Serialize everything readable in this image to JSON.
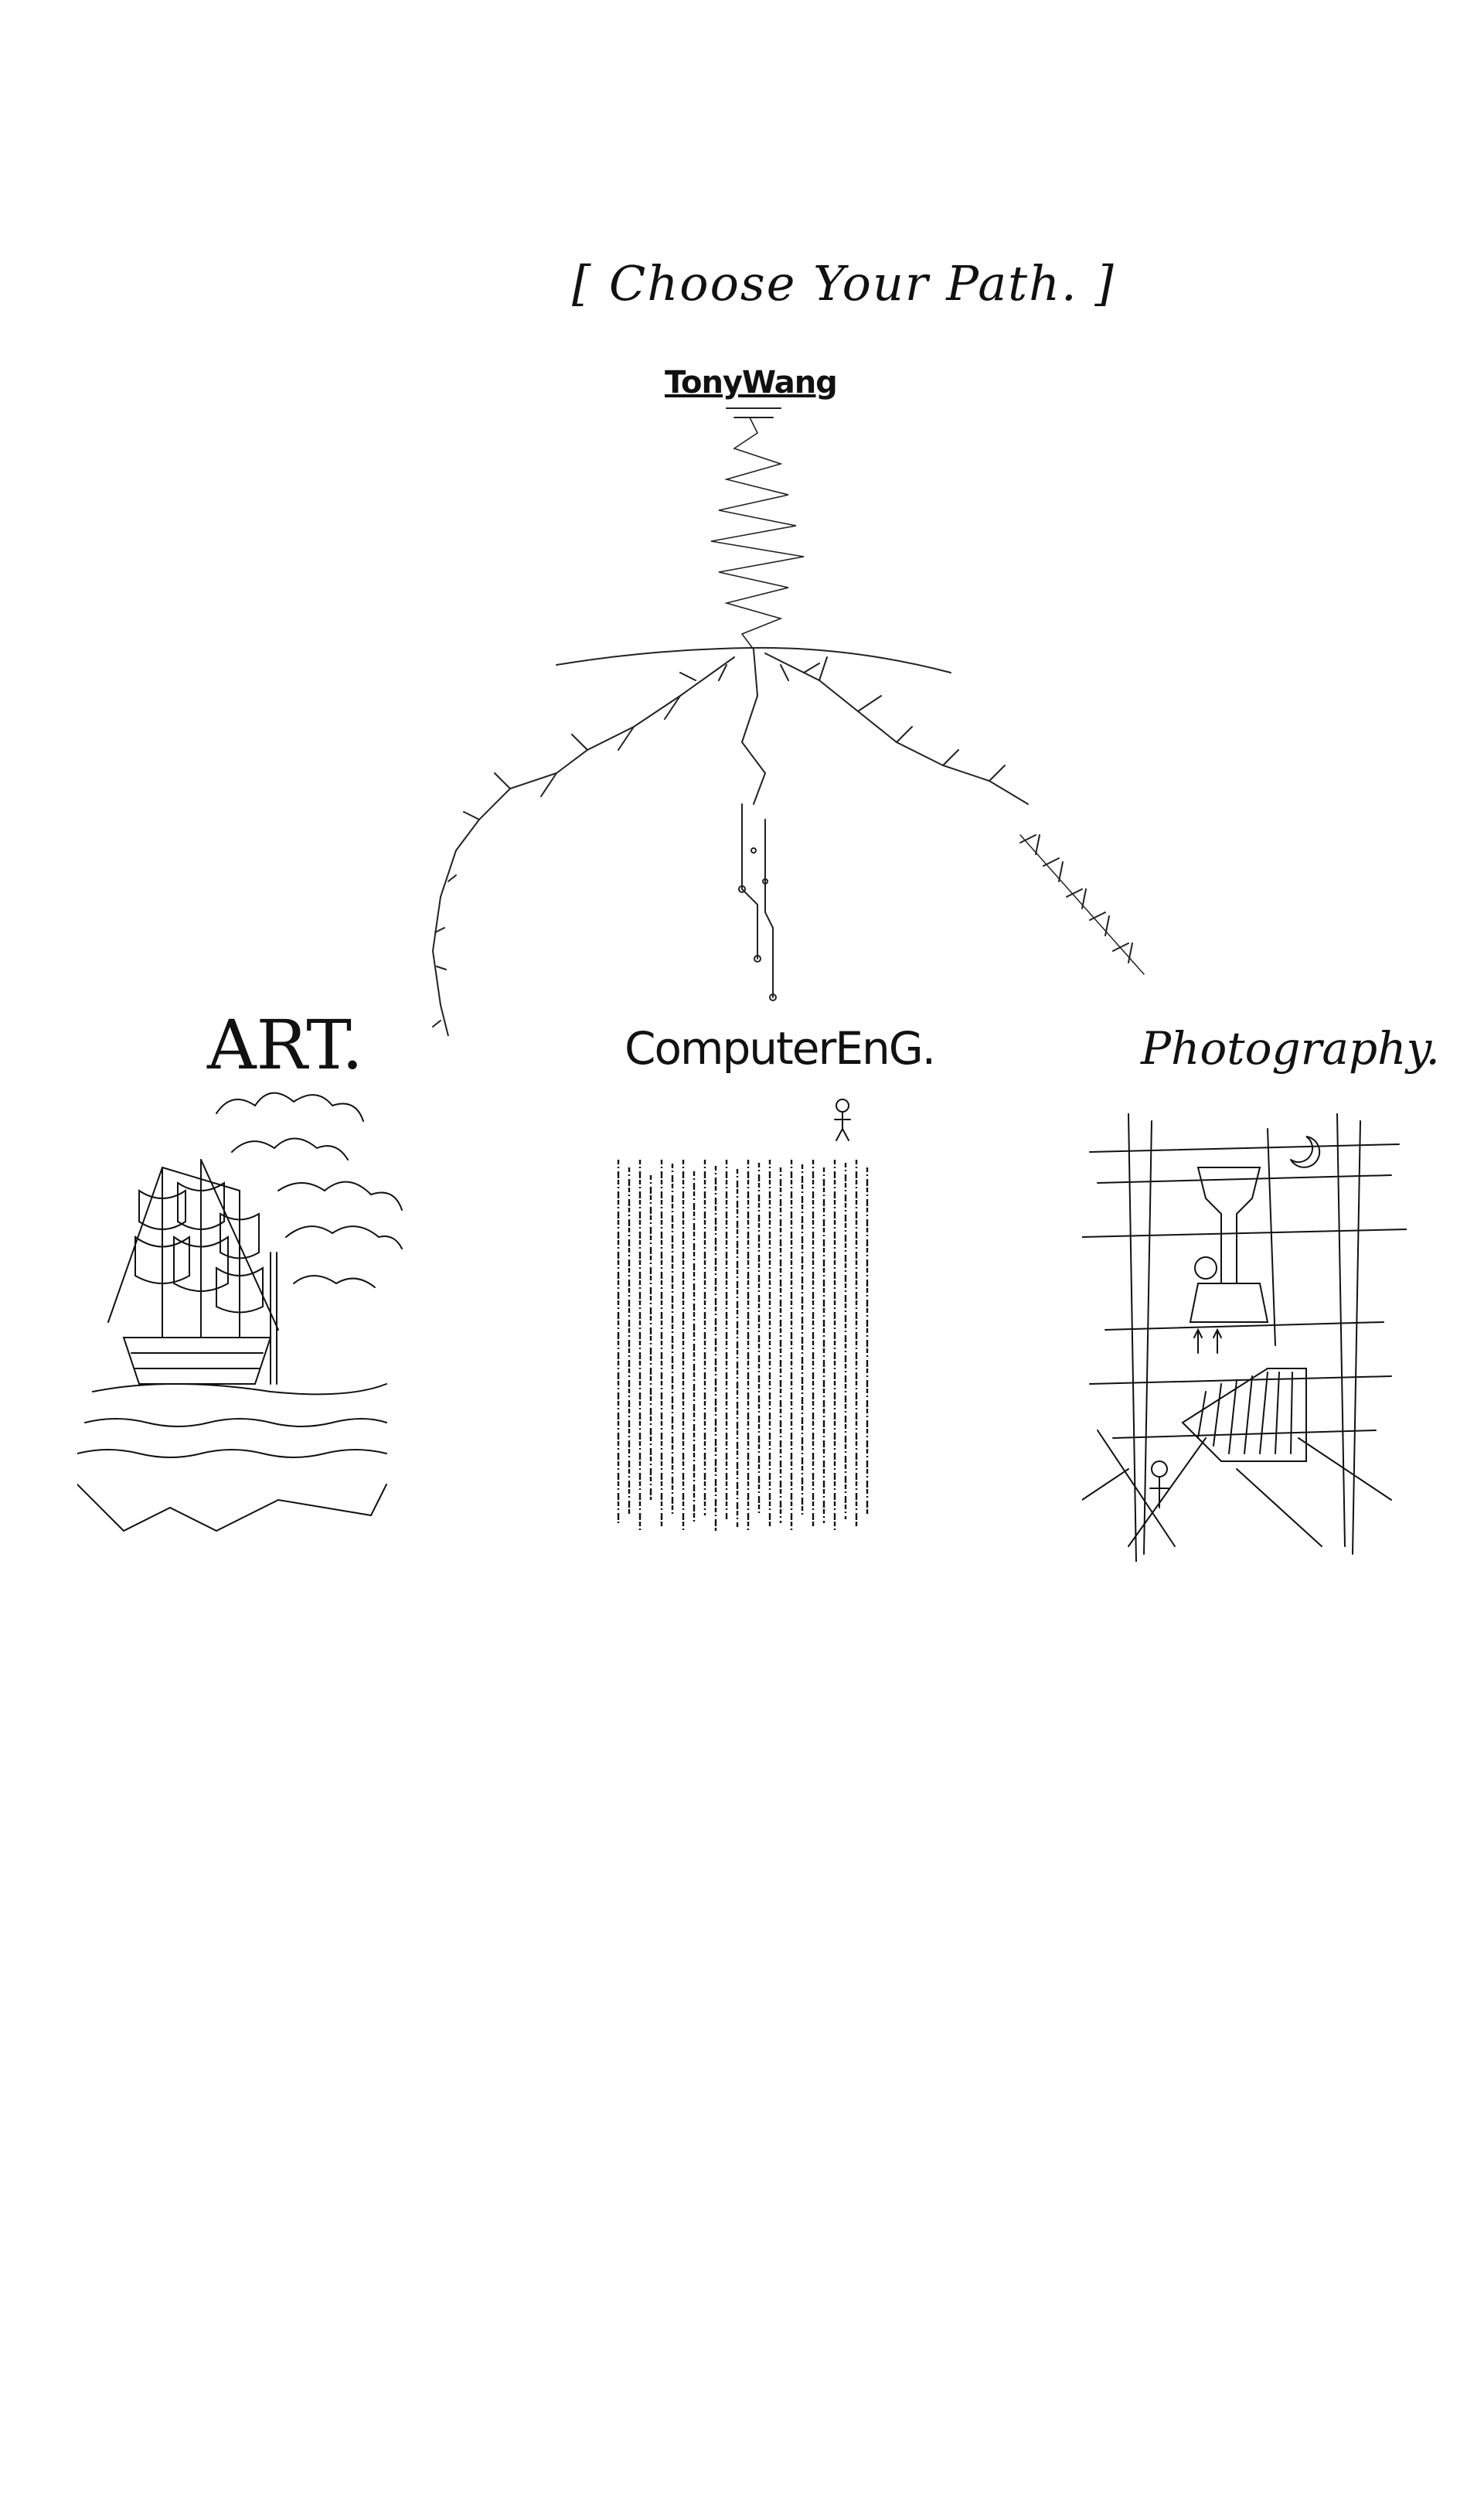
{
  "header": {
    "title": "[ Choose Your Path. ]",
    "author": "TonyWang"
  },
  "paths": {
    "art": "ART.",
    "computer_eng": "ComputerEnG.",
    "photography": "Photography."
  },
  "colors": {
    "ink": "#111111",
    "background": "#ffffff"
  }
}
